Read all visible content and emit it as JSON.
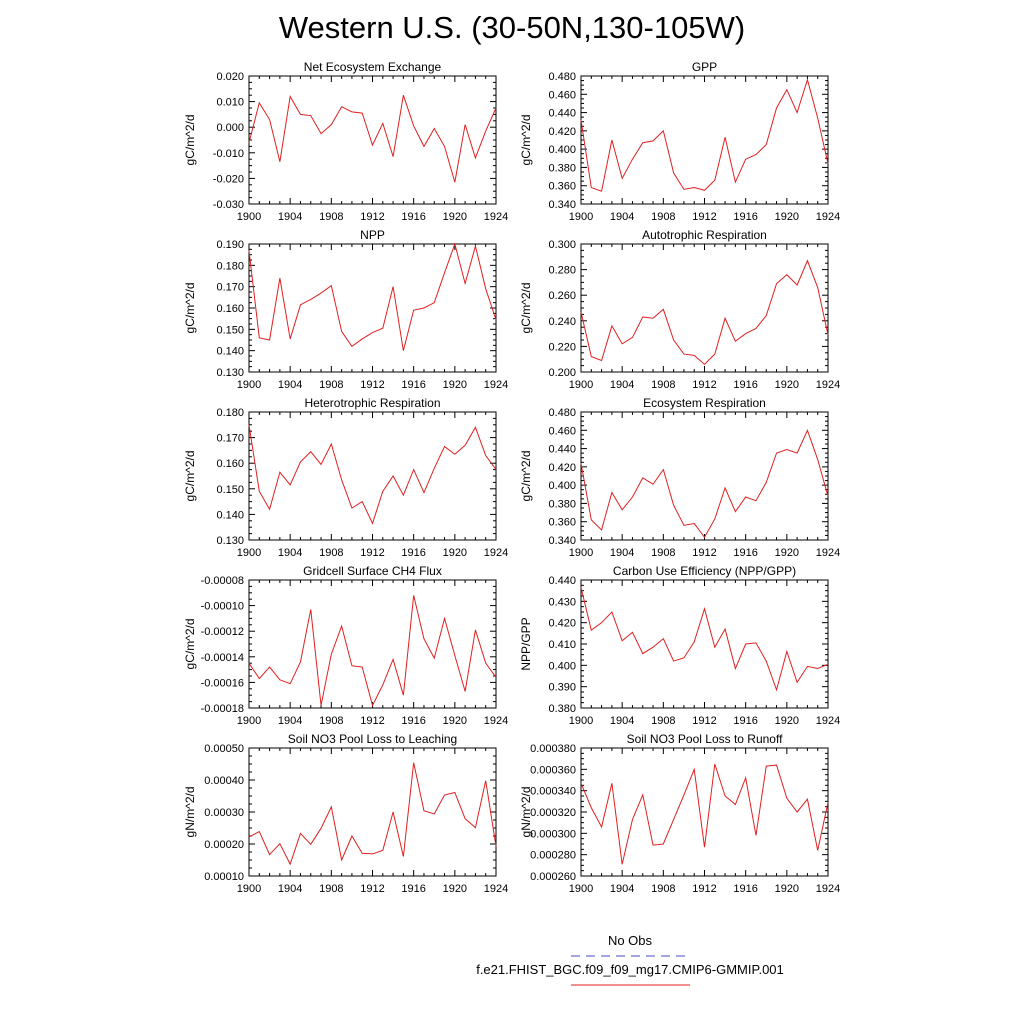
{
  "page": {
    "title": "Western U.S. (30-50N,130-105W)"
  },
  "legend": {
    "items": [
      {
        "label": "No Obs",
        "color": "#4848c8",
        "dash": true
      },
      {
        "label": "f.e21.FHIST_BGC.f09_f09_mg17.CMIP6-GMMIP.001",
        "color": "#e02020",
        "dash": false
      }
    ]
  },
  "chart_data": [
    {
      "type": "line",
      "title": "Net Ecosystem Exchange",
      "ylabel": "gC/m^2/d",
      "xlim": [
        1900,
        1924
      ],
      "xticks": [
        1900,
        1904,
        1908,
        1912,
        1916,
        1920,
        1924
      ],
      "xtick_labels": [
        "1900",
        "1904",
        "1908",
        "1912",
        "1916",
        "1920",
        "1924"
      ],
      "ylim": [
        -0.03,
        0.02
      ],
      "yticks": [
        -0.03,
        -0.02,
        -0.01,
        0.0,
        0.01,
        0.02
      ],
      "ytick_labels": [
        "-0.030",
        "-0.020",
        "-0.010",
        "0.000",
        "0.010",
        "0.020"
      ],
      "x": [
        1900,
        1901,
        1902,
        1903,
        1904,
        1905,
        1906,
        1907,
        1908,
        1909,
        1910,
        1911,
        1912,
        1913,
        1914,
        1915,
        1916,
        1917,
        1918,
        1919,
        1920,
        1921,
        1922,
        1923,
        1924
      ],
      "series": [
        {
          "color": "#e02020",
          "values": [
            -0.006,
            0.0095,
            0.003,
            -0.0135,
            0.012,
            0.005,
            0.0045,
            -0.0025,
            0.001,
            0.008,
            0.006,
            0.0055,
            -0.007,
            0.0015,
            -0.0115,
            0.0125,
            0.0005,
            -0.0075,
            -0.0005,
            -0.0075,
            -0.0215,
            0.001,
            -0.012,
            -0.0015,
            0.0075
          ]
        }
      ]
    },
    {
      "type": "line",
      "title": "GPP",
      "ylabel": "gC/m^2/d",
      "xlim": [
        1900,
        1924
      ],
      "xticks": [
        1900,
        1904,
        1908,
        1912,
        1916,
        1920,
        1924
      ],
      "xtick_labels": [
        "1900",
        "1904",
        "1908",
        "1912",
        "1916",
        "1920",
        "1924"
      ],
      "ylim": [
        0.34,
        0.48
      ],
      "yticks": [
        0.34,
        0.36,
        0.38,
        0.4,
        0.42,
        0.44,
        0.46,
        0.48
      ],
      "ytick_labels": [
        "0.340",
        "0.360",
        "0.380",
        "0.400",
        "0.420",
        "0.440",
        "0.460",
        "0.480"
      ],
      "x": [
        1900,
        1901,
        1902,
        1903,
        1904,
        1905,
        1906,
        1907,
        1908,
        1909,
        1910,
        1911,
        1912,
        1913,
        1914,
        1915,
        1916,
        1917,
        1918,
        1919,
        1920,
        1921,
        1922,
        1923,
        1924
      ],
      "series": [
        {
          "color": "#e02020",
          "values": [
            0.432,
            0.358,
            0.354,
            0.41,
            0.368,
            0.389,
            0.407,
            0.409,
            0.42,
            0.374,
            0.356,
            0.358,
            0.355,
            0.366,
            0.413,
            0.364,
            0.389,
            0.394,
            0.405,
            0.445,
            0.465,
            0.44,
            0.476,
            0.434,
            0.384
          ]
        }
      ]
    },
    {
      "type": "line",
      "title": "NPP",
      "ylabel": "gC/m^2/d",
      "xlim": [
        1900,
        1924
      ],
      "xticks": [
        1900,
        1904,
        1908,
        1912,
        1916,
        1920,
        1924
      ],
      "xtick_labels": [
        "1900",
        "1904",
        "1908",
        "1912",
        "1916",
        "1920",
        "1924"
      ],
      "ylim": [
        0.13,
        0.19
      ],
      "yticks": [
        0.13,
        0.14,
        0.15,
        0.16,
        0.17,
        0.18,
        0.19
      ],
      "ytick_labels": [
        "0.130",
        "0.140",
        "0.150",
        "0.160",
        "0.170",
        "0.180",
        "0.190"
      ],
      "x": [
        1900,
        1901,
        1902,
        1903,
        1904,
        1905,
        1906,
        1907,
        1908,
        1909,
        1910,
        1911,
        1912,
        1913,
        1914,
        1915,
        1916,
        1917,
        1918,
        1919,
        1920,
        1921,
        1922,
        1923,
        1924
      ],
      "series": [
        {
          "color": "#e02020",
          "values": [
            0.187,
            0.146,
            0.145,
            0.174,
            0.1455,
            0.1615,
            0.164,
            0.167,
            0.1705,
            0.149,
            0.142,
            0.1455,
            0.1485,
            0.1505,
            0.17,
            0.14,
            0.159,
            0.16,
            0.1625,
            0.1765,
            0.19,
            0.1715,
            0.189,
            0.169,
            0.1545
          ]
        }
      ]
    },
    {
      "type": "line",
      "title": "Autotrophic Respiration",
      "ylabel": "gC/m^2/d",
      "xlim": [
        1900,
        1924
      ],
      "xticks": [
        1900,
        1904,
        1908,
        1912,
        1916,
        1920,
        1924
      ],
      "xtick_labels": [
        "1900",
        "1904",
        "1908",
        "1912",
        "1916",
        "1920",
        "1924"
      ],
      "ylim": [
        0.2,
        0.3
      ],
      "yticks": [
        0.2,
        0.22,
        0.24,
        0.26,
        0.28,
        0.3
      ],
      "ytick_labels": [
        "0.200",
        "0.220",
        "0.240",
        "0.260",
        "0.280",
        "0.300"
      ],
      "x": [
        1900,
        1901,
        1902,
        1903,
        1904,
        1905,
        1906,
        1907,
        1908,
        1909,
        1910,
        1911,
        1912,
        1913,
        1914,
        1915,
        1916,
        1917,
        1918,
        1919,
        1920,
        1921,
        1922,
        1923,
        1924
      ],
      "series": [
        {
          "color": "#e02020",
          "values": [
            0.247,
            0.212,
            0.209,
            0.236,
            0.222,
            0.227,
            0.243,
            0.242,
            0.249,
            0.225,
            0.214,
            0.213,
            0.206,
            0.214,
            0.242,
            0.224,
            0.23,
            0.234,
            0.244,
            0.269,
            0.276,
            0.268,
            0.287,
            0.266,
            0.229
          ]
        }
      ]
    },
    {
      "type": "line",
      "title": "Heterotrophic Respiration",
      "ylabel": "gC/m^2/d",
      "xlim": [
        1900,
        1924
      ],
      "xticks": [
        1900,
        1904,
        1908,
        1912,
        1916,
        1920,
        1924
      ],
      "xtick_labels": [
        "1900",
        "1904",
        "1908",
        "1912",
        "1916",
        "1920",
        "1924"
      ],
      "ylim": [
        0.13,
        0.18
      ],
      "yticks": [
        0.13,
        0.14,
        0.15,
        0.16,
        0.17,
        0.18
      ],
      "ytick_labels": [
        "0.130",
        "0.140",
        "0.150",
        "0.160",
        "0.170",
        "0.180"
      ],
      "x": [
        1900,
        1901,
        1902,
        1903,
        1904,
        1905,
        1906,
        1907,
        1908,
        1909,
        1910,
        1911,
        1912,
        1913,
        1914,
        1915,
        1916,
        1917,
        1918,
        1919,
        1920,
        1921,
        1922,
        1923,
        1924
      ],
      "series": [
        {
          "color": "#e02020",
          "values": [
            0.175,
            0.149,
            0.142,
            0.1565,
            0.1515,
            0.1605,
            0.1645,
            0.1595,
            0.1675,
            0.1535,
            0.1425,
            0.145,
            0.1365,
            0.149,
            0.155,
            0.1475,
            0.1575,
            0.1485,
            0.158,
            0.1665,
            0.1635,
            0.167,
            0.174,
            0.163,
            0.1575
          ]
        }
      ]
    },
    {
      "type": "line",
      "title": "Ecosystem Respiration",
      "ylabel": "gC/m^2/d",
      "xlim": [
        1900,
        1924
      ],
      "xticks": [
        1900,
        1904,
        1908,
        1912,
        1916,
        1920,
        1924
      ],
      "xtick_labels": [
        "1900",
        "1904",
        "1908",
        "1912",
        "1916",
        "1920",
        "1924"
      ],
      "ylim": [
        0.34,
        0.48
      ],
      "yticks": [
        0.34,
        0.36,
        0.38,
        0.4,
        0.42,
        0.44,
        0.46,
        0.48
      ],
      "ytick_labels": [
        "0.340",
        "0.360",
        "0.380",
        "0.400",
        "0.420",
        "0.440",
        "0.460",
        "0.480"
      ],
      "x": [
        1900,
        1901,
        1902,
        1903,
        1904,
        1905,
        1906,
        1907,
        1908,
        1909,
        1910,
        1911,
        1912,
        1913,
        1914,
        1915,
        1916,
        1917,
        1918,
        1919,
        1920,
        1921,
        1922,
        1923,
        1924
      ],
      "series": [
        {
          "color": "#e02020",
          "values": [
            0.424,
            0.362,
            0.351,
            0.392,
            0.373,
            0.387,
            0.408,
            0.401,
            0.417,
            0.378,
            0.356,
            0.358,
            0.343,
            0.363,
            0.397,
            0.371,
            0.387,
            0.383,
            0.403,
            0.435,
            0.439,
            0.435,
            0.46,
            0.428,
            0.388
          ]
        }
      ]
    },
    {
      "type": "line",
      "title": "Gridcell Surface CH4 Flux",
      "ylabel": "gC/m^2/d",
      "xlim": [
        1900,
        1924
      ],
      "xticks": [
        1900,
        1904,
        1908,
        1912,
        1916,
        1920,
        1924
      ],
      "xtick_labels": [
        "1900",
        "1904",
        "1908",
        "1912",
        "1916",
        "1920",
        "1924"
      ],
      "ylim": [
        -0.00018,
        -8e-05
      ],
      "yticks": [
        -0.00018,
        -0.00016,
        -0.00014,
        -0.00012,
        -0.0001,
        -8e-05
      ],
      "ytick_labels": [
        "-0.00018",
        "-0.00016",
        "-0.00014",
        "-0.00012",
        "-0.00010",
        "-0.00008"
      ],
      "x": [
        1900,
        1901,
        1902,
        1903,
        1904,
        1905,
        1906,
        1907,
        1908,
        1909,
        1910,
        1911,
        1912,
        1913,
        1914,
        1915,
        1916,
        1917,
        1918,
        1919,
        1920,
        1921,
        1922,
        1923,
        1924
      ],
      "series": [
        {
          "color": "#e02020",
          "values": [
            -0.000145,
            -0.000157,
            -0.000148,
            -0.000158,
            -0.000161,
            -0.000144,
            -0.000103,
            -0.000178,
            -0.000138,
            -0.000116,
            -0.000147,
            -0.000148,
            -0.000178,
            -0.000162,
            -0.000142,
            -0.00017,
            -9.2e-05,
            -0.000126,
            -0.000141,
            -0.00011,
            -0.000139,
            -0.000167,
            -0.000119,
            -0.000145,
            -0.000156
          ]
        }
      ]
    },
    {
      "type": "line",
      "title": "Carbon Use Efficiency (NPP/GPP)",
      "ylabel": "NPP/GPP",
      "xlim": [
        1900,
        1924
      ],
      "xticks": [
        1900,
        1904,
        1908,
        1912,
        1916,
        1920,
        1924
      ],
      "xtick_labels": [
        "1900",
        "1904",
        "1908",
        "1912",
        "1916",
        "1920",
        "1924"
      ],
      "ylim": [
        0.38,
        0.44
      ],
      "yticks": [
        0.38,
        0.39,
        0.4,
        0.41,
        0.42,
        0.43,
        0.44
      ],
      "ytick_labels": [
        "0.380",
        "0.390",
        "0.400",
        "0.410",
        "0.420",
        "0.430",
        "0.440"
      ],
      "x": [
        1900,
        1901,
        1902,
        1903,
        1904,
        1905,
        1906,
        1907,
        1908,
        1909,
        1910,
        1911,
        1912,
        1913,
        1914,
        1915,
        1916,
        1917,
        1918,
        1919,
        1920,
        1921,
        1922,
        1923,
        1924
      ],
      "series": [
        {
          "color": "#e02020",
          "values": [
            0.4365,
            0.4165,
            0.42,
            0.425,
            0.4115,
            0.4155,
            0.4055,
            0.4085,
            0.4125,
            0.402,
            0.4035,
            0.411,
            0.4265,
            0.4085,
            0.417,
            0.3985,
            0.41,
            0.4105,
            0.402,
            0.3885,
            0.4065,
            0.392,
            0.3995,
            0.3985,
            0.4005
          ]
        }
      ]
    },
    {
      "type": "line",
      "title": "Soil NO3 Pool Loss to Leaching",
      "ylabel": "gN/m^2/d",
      "xlim": [
        1900,
        1924
      ],
      "xticks": [
        1900,
        1904,
        1908,
        1912,
        1916,
        1920,
        1924
      ],
      "xtick_labels": [
        "1900",
        "1904",
        "1908",
        "1912",
        "1916",
        "1920",
        "1924"
      ],
      "ylim": [
        0.0001,
        0.0005
      ],
      "yticks": [
        0.0001,
        0.0002,
        0.0003,
        0.0004,
        0.0005
      ],
      "ytick_labels": [
        "0.00010",
        "0.00020",
        "0.00030",
        "0.00040",
        "0.00050"
      ],
      "x": [
        1900,
        1901,
        1902,
        1903,
        1904,
        1905,
        1906,
        1907,
        1908,
        1909,
        1910,
        1911,
        1912,
        1913,
        1914,
        1915,
        1916,
        1917,
        1918,
        1919,
        1920,
        1921,
        1922,
        1923,
        1924
      ],
      "series": [
        {
          "color": "#e02020",
          "values": [
            0.000222,
            0.000239,
            0.000167,
            0.000201,
            0.000137,
            0.000233,
            0.000199,
            0.000249,
            0.000316,
            0.00015,
            0.000225,
            0.000171,
            0.000169,
            0.00018,
            0.0003,
            0.000161,
            0.000454,
            0.000304,
            0.000294,
            0.000353,
            0.000361,
            0.000279,
            0.000251,
            0.000398,
            0.000192
          ]
        }
      ]
    },
    {
      "type": "line",
      "title": "Soil NO3 Pool Loss to Runoff",
      "ylabel": "gN/m^2/d",
      "xlim": [
        1900,
        1924
      ],
      "xticks": [
        1900,
        1904,
        1908,
        1912,
        1916,
        1920,
        1924
      ],
      "xtick_labels": [
        "1900",
        "1904",
        "1908",
        "1912",
        "1916",
        "1920",
        "1924"
      ],
      "ylim": [
        0.00026,
        0.00038
      ],
      "yticks": [
        0.00026,
        0.00028,
        0.0003,
        0.00032,
        0.00034,
        0.00036,
        0.00038
      ],
      "ytick_labels": [
        "0.000260",
        "0.000280",
        "0.000300",
        "0.000320",
        "0.000340",
        "0.000360",
        "0.000380"
      ],
      "x": [
        1900,
        1901,
        1902,
        1903,
        1904,
        1905,
        1906,
        1907,
        1908,
        1909,
        1910,
        1911,
        1912,
        1913,
        1914,
        1915,
        1916,
        1917,
        1918,
        1919,
        1920,
        1921,
        1922,
        1923,
        1924
      ],
      "series": [
        {
          "color": "#e02020",
          "values": [
            0.000347,
            0.000324,
            0.000306,
            0.000347,
            0.000271,
            0.000313,
            0.000336,
            0.000289,
            0.00029,
            0.000313,
            0.000336,
            0.00036,
            0.000287,
            0.000365,
            0.000335,
            0.000327,
            0.000352,
            0.000298,
            0.000363,
            0.000364,
            0.000333,
            0.00032,
            0.000332,
            0.000284,
            0.000329
          ]
        }
      ]
    }
  ]
}
